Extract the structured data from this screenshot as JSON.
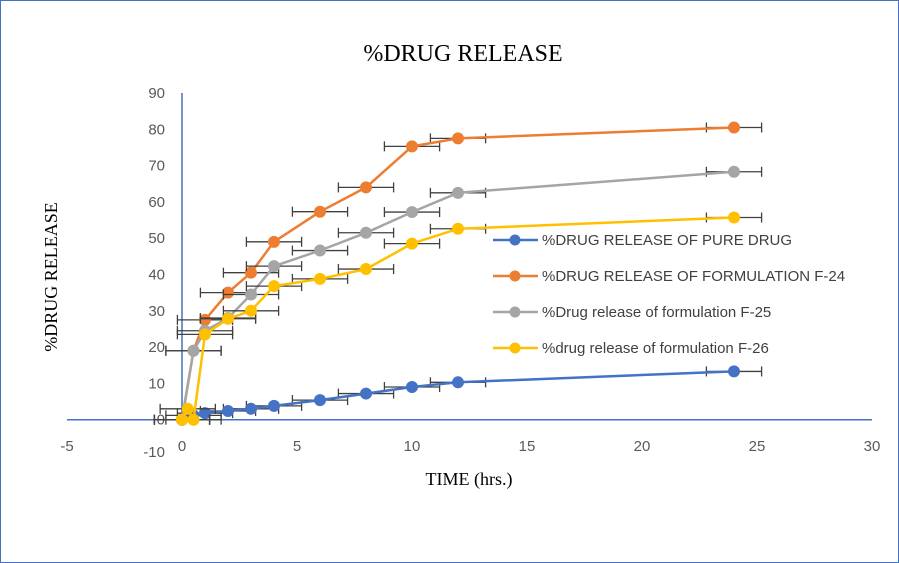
{
  "chart_data": {
    "type": "scatter",
    "title": "%DRUG RELEASE",
    "xlabel": "TIME (hrs.)",
    "ylabel": "%DRUG RELEASE",
    "xlim": [
      -5,
      30
    ],
    "ylim": [
      -10,
      90
    ],
    "xticks": [
      -5,
      0,
      5,
      10,
      15,
      20,
      25,
      30
    ],
    "yticks": [
      -10,
      0,
      10,
      20,
      30,
      40,
      50,
      60,
      70,
      80,
      90
    ],
    "legend_position": "right",
    "error_bars": "horizontal",
    "series": [
      {
        "name": "%DRUG RELEASE OF PURE DRUG",
        "color": "#4472c4",
        "x": [
          0,
          0.5,
          1,
          2,
          3,
          4,
          6,
          8,
          10,
          12,
          24
        ],
        "y": [
          0,
          1.2,
          1.8,
          2.4,
          3,
          3.8,
          5.4,
          7.2,
          9,
          10.3,
          13.3
        ],
        "xerr": 1.2
      },
      {
        "name": "%DRUG RELEASE OF FORMULATION F-24",
        "color": "#ed7d31",
        "x": [
          0,
          0.5,
          1,
          2,
          3,
          4,
          6,
          8,
          10,
          12,
          24
        ],
        "y": [
          0,
          19,
          27.5,
          35,
          40.5,
          49,
          57.3,
          64,
          75.3,
          77.5,
          80.5
        ],
        "xerr": 1.2
      },
      {
        "name": "%Drug release of formulation F-25",
        "color": "#a5a5a5",
        "x": [
          0,
          0.5,
          1,
          2,
          3,
          4,
          6,
          8,
          10,
          12,
          24
        ],
        "y": [
          0,
          19,
          24.5,
          28,
          34.5,
          42.3,
          46.6,
          51.5,
          57.2,
          62.5,
          68.3
        ],
        "xerr": 1.2
      },
      {
        "name": "%drug release of formulation F-26",
        "color": "#ffc000",
        "x": [
          0,
          0.25,
          0.5,
          1,
          2,
          3,
          4,
          6,
          8,
          10,
          12,
          24
        ],
        "y": [
          0,
          3,
          0,
          23.5,
          27.8,
          30,
          36.8,
          38.8,
          41.5,
          48.5,
          52.6,
          55.7
        ],
        "xerr": 1.2
      }
    ]
  }
}
